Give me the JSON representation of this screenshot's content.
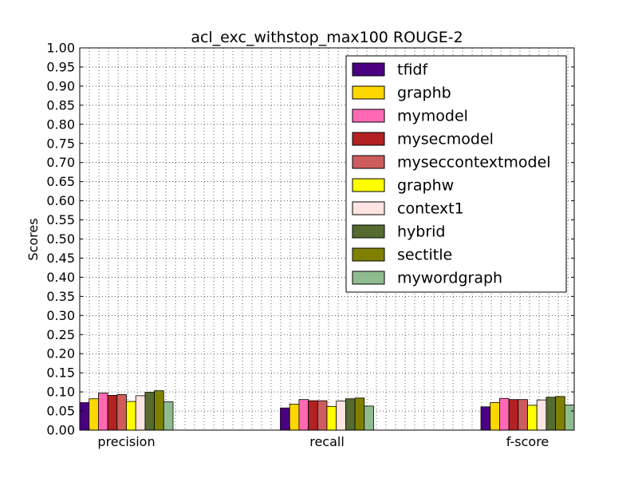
{
  "chart_data": {
    "type": "bar",
    "title": "acl_exc_withstop_max100 ROUGE-2",
    "xlabel": "",
    "ylabel": "Scores",
    "ylim": [
      0,
      1.0
    ],
    "yticks": [
      "0.00",
      "0.05",
      "0.10",
      "0.15",
      "0.20",
      "0.25",
      "0.30",
      "0.35",
      "0.40",
      "0.45",
      "0.50",
      "0.55",
      "0.60",
      "0.65",
      "0.70",
      "0.75",
      "0.80",
      "0.85",
      "0.90",
      "0.95",
      "1.00"
    ],
    "categories": [
      "precision",
      "recall",
      "f-score"
    ],
    "grid": true,
    "legend_position": "top-right",
    "series": [
      {
        "name": "tfidf",
        "color": "#4b0082",
        "values": [
          0.072,
          0.058,
          0.061
        ]
      },
      {
        "name": "graphb",
        "color": "#ffd700",
        "values": [
          0.082,
          0.068,
          0.072
        ]
      },
      {
        "name": "mymodel",
        "color": "#ff69b4",
        "values": [
          0.097,
          0.08,
          0.083
        ]
      },
      {
        "name": "mysecmodel",
        "color": "#b22222",
        "values": [
          0.091,
          0.077,
          0.08
        ]
      },
      {
        "name": "myseccontextmodel",
        "color": "#cd5c5c",
        "values": [
          0.093,
          0.077,
          0.08
        ]
      },
      {
        "name": "graphw",
        "color": "#ffff00",
        "values": [
          0.075,
          0.062,
          0.065
        ]
      },
      {
        "name": "context1",
        "color": "#ffe4e1",
        "values": [
          0.09,
          0.076,
          0.079
        ]
      },
      {
        "name": "hybrid",
        "color": "#556b2f",
        "values": [
          0.099,
          0.082,
          0.086
        ]
      },
      {
        "name": "sectitle",
        "color": "#808000",
        "values": [
          0.103,
          0.084,
          0.088
        ]
      },
      {
        "name": "mywordgraph",
        "color": "#8fbc8f",
        "values": [
          0.074,
          0.063,
          0.066
        ]
      }
    ]
  }
}
